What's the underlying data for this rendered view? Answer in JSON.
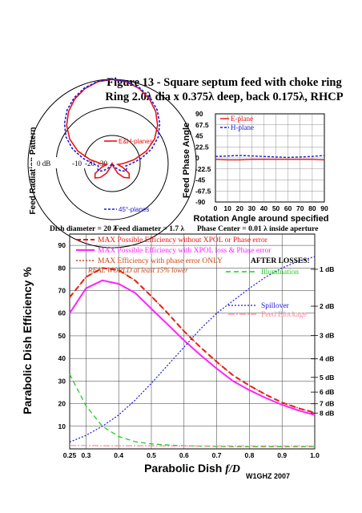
{
  "figure": {
    "title_line1": "Figure 13 - Square septum feed with choke ring",
    "title_line2": "Ring 2.0λ dia x 0.375λ deep, back 0.175λ, RHCP",
    "dish_info": "Dish diameter = 20 λ",
    "feed_info": "Feed diameter = 1.7 λ",
    "phase_center": "Phase Center = 0.01 λ inside aperture",
    "credit": "W1GHZ 2007"
  },
  "colors": {
    "red": "#ee1111",
    "blue": "#1a1ae0",
    "magenta": "#ff22ff",
    "green": "#22cc22",
    "pink": "#ff8899",
    "brown": "#cc4411"
  },
  "chart_data": [
    {
      "type": "polar",
      "ylabel": "Feed Radiation Pattern",
      "ring_labels": [
        "0 dB",
        "-10",
        "-20",
        "-30"
      ],
      "legend": [
        "E&H-planes",
        "45°-planes"
      ],
      "series": [
        {
          "name": "E&H-planes",
          "angle_deg": [
            0,
            10,
            20,
            30,
            40,
            50,
            60,
            70,
            80,
            90,
            100,
            110,
            120,
            130,
            140,
            150,
            160,
            170,
            180
          ],
          "db": [
            0,
            -0.4,
            -1.6,
            -3.4,
            -5.8,
            -8.8,
            -12.5,
            -17,
            -22,
            -26,
            -28,
            -26,
            -23,
            -22,
            -23.5,
            -26,
            -29,
            -30,
            -30
          ]
        },
        {
          "name": "45°-planes",
          "angle_deg": [
            0,
            10,
            20,
            30,
            40,
            50,
            60,
            70,
            80,
            90,
            100,
            110,
            120,
            130,
            140,
            150,
            160,
            170,
            180
          ],
          "db": [
            0,
            -0.3,
            -1.3,
            -2.9,
            -5,
            -7.8,
            -11,
            -15,
            -19.5,
            -23,
            -25,
            -24.5,
            -24.5,
            -26,
            -28,
            -30,
            -30,
            -30,
            -30
          ]
        }
      ]
    },
    {
      "type": "line",
      "ylabel": "Feed Phase Angle",
      "xlabel": "Rotation Angle around specified",
      "x_ticks": [
        0,
        10,
        20,
        30,
        40,
        50,
        60,
        70,
        80,
        90
      ],
      "y_ticks": [
        "90",
        "67.5",
        "45",
        "22.5",
        "0",
        "-22.5",
        "-45",
        "-67.5",
        "-90"
      ],
      "xlim": [
        0,
        90
      ],
      "ylim": [
        -90,
        90
      ],
      "legend": [
        "E-plane",
        "H-plane"
      ],
      "series": [
        {
          "name": "E-plane",
          "x": [
            0,
            10,
            20,
            30,
            40,
            50,
            60,
            70,
            80,
            90
          ],
          "y": [
            -3,
            -4,
            -4,
            -3,
            -3,
            -3,
            -3,
            -3,
            -3,
            -4
          ]
        },
        {
          "name": "H-plane",
          "x": [
            0,
            10,
            20,
            30,
            40,
            50,
            60,
            70,
            80,
            90
          ],
          "y": [
            3,
            4,
            5,
            4,
            3,
            2,
            1,
            2,
            3,
            5
          ]
        }
      ]
    },
    {
      "type": "line",
      "ylabel": "Parabolic Dish Efficiency %",
      "xlabel_main": "Parabolic Dish ",
      "xlabel_italic": "f/D",
      "x_ticks": [
        "0.25",
        "0.3",
        "0.4",
        "0.5",
        "0.6",
        "0.7",
        "0.8",
        "0.9",
        "1.0"
      ],
      "y_ticks": [
        "90",
        "80",
        "70",
        "60",
        "50",
        "40",
        "30",
        "20",
        "10"
      ],
      "db_ticks": [
        "1 dB",
        "2 dB",
        "3 dB",
        "4 dB",
        "5 dB",
        "6 dB",
        "7 dB",
        "8 dB"
      ],
      "xlim": [
        0.25,
        1.0
      ],
      "ylim": [
        0,
        95
      ],
      "legend": [
        "MAX Possible Efficiency without XPOL or Phase error",
        "MAX Possible Efficiency with XPOL loss & Phase error",
        "MAX Efficiency with phase error ONLY"
      ],
      "note": "REAL WORLD at least 15% lower",
      "after_losses_title": "AFTER LOSSES:",
      "after_losses": [
        "Illumination",
        "Spillover",
        "Feed Blockage"
      ],
      "series": [
        {
          "name": "MAX Possible Efficiency without XPOL or Phase error",
          "x": [
            0.25,
            0.3,
            0.35,
            0.4,
            0.45,
            0.5,
            0.55,
            0.6,
            0.65,
            0.7,
            0.75,
            0.8,
            0.85,
            0.9,
            0.95,
            1.0
          ],
          "y": [
            67,
            76,
            80,
            79,
            74.5,
            67.5,
            60,
            52,
            45,
            38.5,
            32.5,
            28,
            24,
            20.5,
            18,
            16
          ]
        },
        {
          "name": "MAX Possible Efficiency with XPOL loss & Phase error",
          "x": [
            0.25,
            0.3,
            0.35,
            0.4,
            0.45,
            0.5,
            0.55,
            0.6,
            0.65,
            0.7,
            0.75,
            0.8,
            0.85,
            0.9,
            0.95,
            1.0
          ],
          "y": [
            60,
            71,
            74.5,
            73,
            69,
            62,
            55,
            48,
            41.5,
            35.5,
            30,
            26,
            22.5,
            19.5,
            17,
            15
          ]
        },
        {
          "name": "MAX Efficiency with phase error ONLY",
          "x": [
            0.25,
            0.3,
            0.35,
            0.4,
            0.45,
            0.5,
            0.55,
            0.6,
            0.65,
            0.7,
            0.75,
            0.8,
            0.85,
            0.9,
            0.95,
            1.0
          ],
          "y": [
            67,
            76,
            80,
            79,
            74.5,
            67.5,
            60,
            52,
            45,
            38.5,
            32.5,
            28,
            24,
            20.5,
            18,
            16
          ]
        },
        {
          "name": "Illumination",
          "x": [
            0.25,
            0.3,
            0.35,
            0.4,
            0.45,
            0.5,
            0.55,
            0.6,
            0.65,
            0.7,
            0.75,
            0.8,
            0.85,
            0.9,
            0.95,
            1.0
          ],
          "y": [
            33,
            19,
            10,
            5.5,
            3.2,
            2.2,
            1.7,
            1.4,
            1.2,
            1.1,
            1,
            1,
            1,
            1,
            1,
            1
          ]
        },
        {
          "name": "Spillover",
          "x": [
            0.25,
            0.3,
            0.35,
            0.4,
            0.45,
            0.5,
            0.55,
            0.6,
            0.65,
            0.7,
            0.75,
            0.8,
            0.85,
            0.9,
            0.95,
            1.0
          ],
          "y": [
            3,
            6,
            10,
            15,
            21.5,
            29,
            37,
            45,
            53,
            60,
            65.5,
            71,
            76,
            80,
            83,
            85
          ]
        },
        {
          "name": "Feed Blockage",
          "x": [
            0.25,
            0.3,
            0.35,
            0.4,
            0.45,
            0.5,
            0.55,
            0.6,
            0.65,
            0.7,
            0.75,
            0.8,
            0.85,
            0.9,
            0.95,
            1.0
          ],
          "y": [
            1.5,
            1.5,
            1.4,
            1.4,
            1.4,
            1.4,
            1.3,
            1.3,
            1.3,
            1.3,
            1.3,
            1.3,
            1.3,
            1.3,
            1.3,
            1.3
          ]
        }
      ]
    }
  ]
}
